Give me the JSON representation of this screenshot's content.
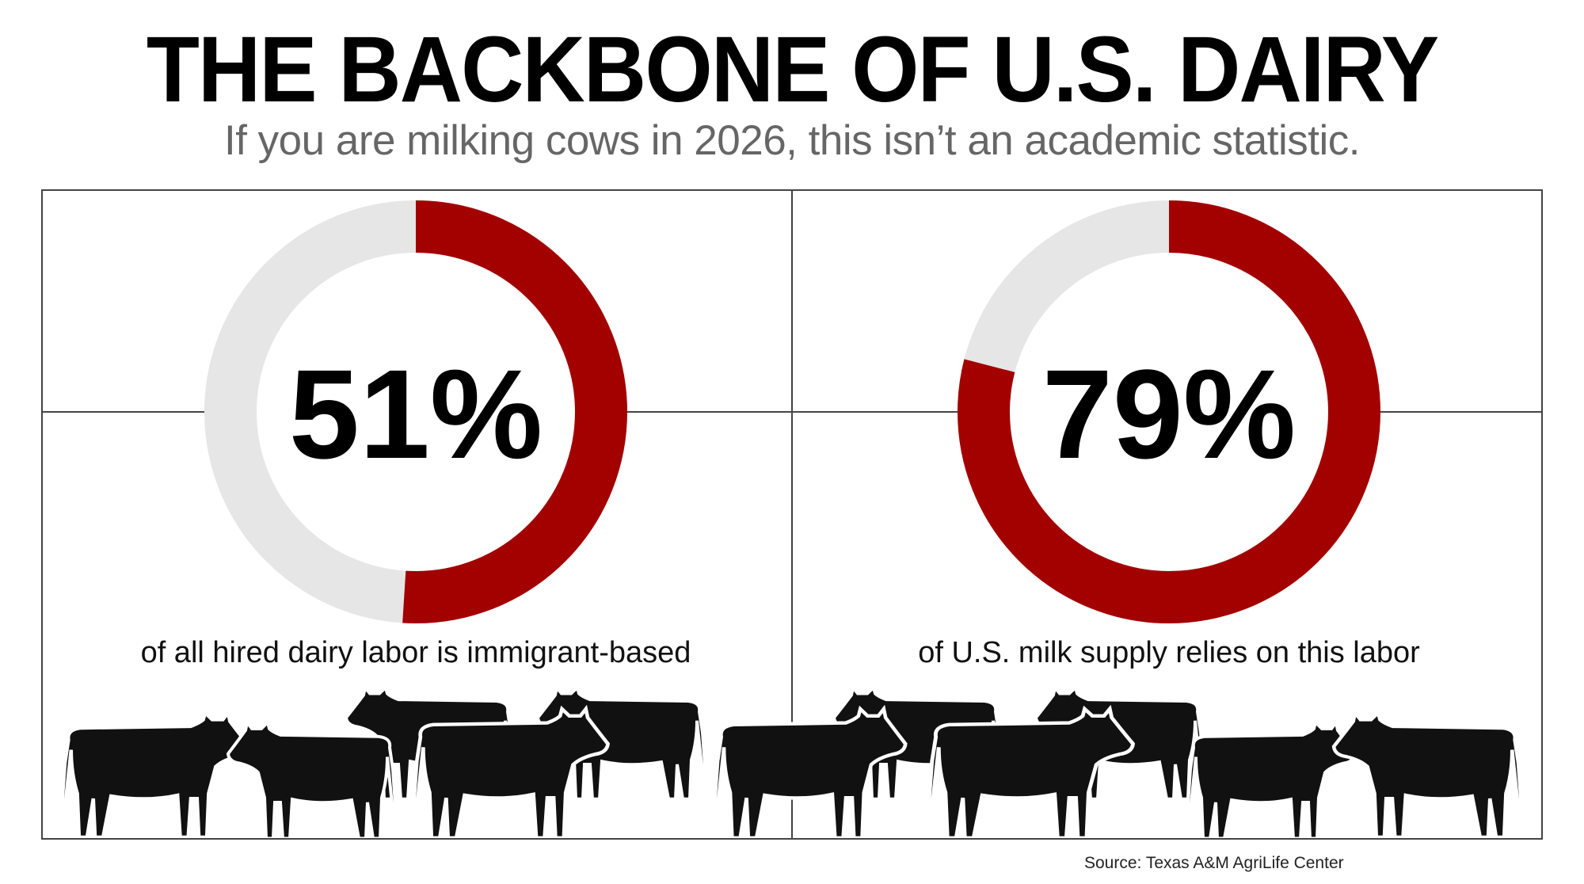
{
  "header": {
    "title": "THE BACKBONE OF U.S. DAIRY",
    "subtitle": "If you are milking cows in 2026, this isn’t an academic statistic."
  },
  "colors": {
    "accent": "#a30000",
    "track": "#e6e6e6",
    "text": "#000000",
    "subtitle": "#666666"
  },
  "chart_data": [
    {
      "type": "pie",
      "variant": "donut",
      "value": 51,
      "label": "51%",
      "caption": "of all hired dairy labor is immigrant-based",
      "remainder": 49
    },
    {
      "type": "pie",
      "variant": "donut",
      "value": 79,
      "label": "79%",
      "caption": "of U.S. milk supply relies on this labor",
      "remainder": 21
    }
  ],
  "decoration": {
    "icon": "cow-silhouette-icon",
    "count": 11
  },
  "footer": {
    "source": "Source: Texas A&M AgriLife Center"
  }
}
